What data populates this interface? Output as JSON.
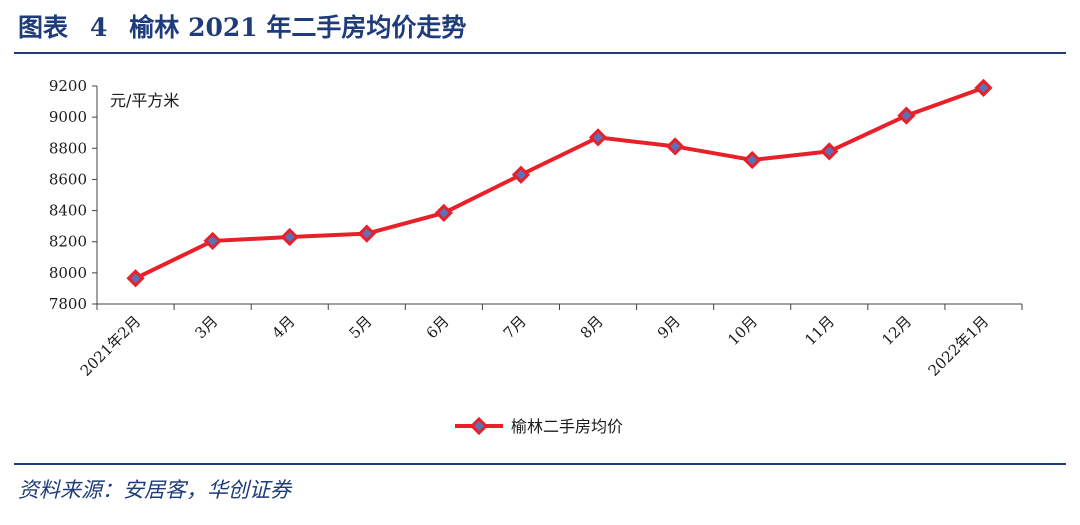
{
  "figure": {
    "label": "图表",
    "number": "4",
    "title": "榆林 2021 年二手房均价走势"
  },
  "source": "资料来源：安居客，华创证券",
  "colors": {
    "accent": "#1f3c7a",
    "line": "#e8202a",
    "marker_fill": "#5a73b8",
    "marker_edge": "#e8202a"
  },
  "chart_data": {
    "type": "line",
    "unit_label": "元/平方米",
    "ylim": [
      7800,
      9200
    ],
    "yticks": [
      7800,
      8000,
      8200,
      8400,
      8600,
      8800,
      9000,
      9200
    ],
    "categories": [
      "2021年2月",
      "3月",
      "4月",
      "5月",
      "6月",
      "7月",
      "8月",
      "9月",
      "10月",
      "11月",
      "12月",
      "2022年1月"
    ],
    "series": [
      {
        "name": "榆林二手房均价",
        "values": [
          7965,
          8205,
          8230,
          8252,
          8385,
          8630,
          8870,
          8812,
          8725,
          8780,
          9010,
          9188
        ]
      }
    ],
    "legend_position": "bottom-center",
    "grid": false
  }
}
